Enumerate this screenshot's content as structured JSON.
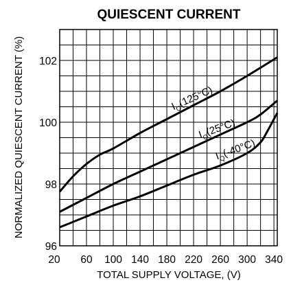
{
  "chart_data": {
    "type": "line",
    "title": "QUIESCENT CURRENT",
    "xlabel": "TOTAL SUPPLY VOLTAGE, (V)",
    "ylabel": "NORMALIZED QUIESCENT CURRENT (%)",
    "xlim": [
      20,
      345
    ],
    "ylim": [
      96,
      103
    ],
    "x_ticks": [
      20,
      60,
      100,
      140,
      180,
      220,
      260,
      300,
      340
    ],
    "y_ticks": [
      96,
      98,
      100,
      102
    ],
    "grid": true,
    "legend": "none",
    "series": [
      {
        "name": "Iₐ(125°C)",
        "label_main": "I",
        "label_sub": "Q",
        "label_rest": "(125°C)",
        "x": [
          20,
          40,
          60,
          80,
          100,
          140,
          180,
          220,
          260,
          300,
          345
        ],
        "y": [
          97.75,
          98.25,
          98.65,
          98.95,
          99.15,
          99.65,
          100.1,
          100.55,
          101.0,
          101.5,
          102.1
        ]
      },
      {
        "name": "Iₐ(25°C)",
        "label_main": "I",
        "label_sub": "Q",
        "label_rest": "(25°C)",
        "x": [
          20,
          60,
          100,
          140,
          180,
          220,
          260,
          300,
          320,
          345
        ],
        "y": [
          97.1,
          97.55,
          98.0,
          98.4,
          98.8,
          99.2,
          99.6,
          100.0,
          100.25,
          100.7
        ]
      },
      {
        "name": "Iₐ(-40°C)",
        "label_main": "I",
        "label_sub": "Q",
        "label_rest": "(-40°C)",
        "x": [
          20,
          60,
          100,
          140,
          180,
          220,
          260,
          300,
          320,
          330,
          340,
          345
        ],
        "y": [
          96.6,
          96.95,
          97.3,
          97.6,
          97.95,
          98.3,
          98.6,
          99.0,
          99.35,
          99.7,
          100.1,
          100.3
        ]
      }
    ]
  }
}
